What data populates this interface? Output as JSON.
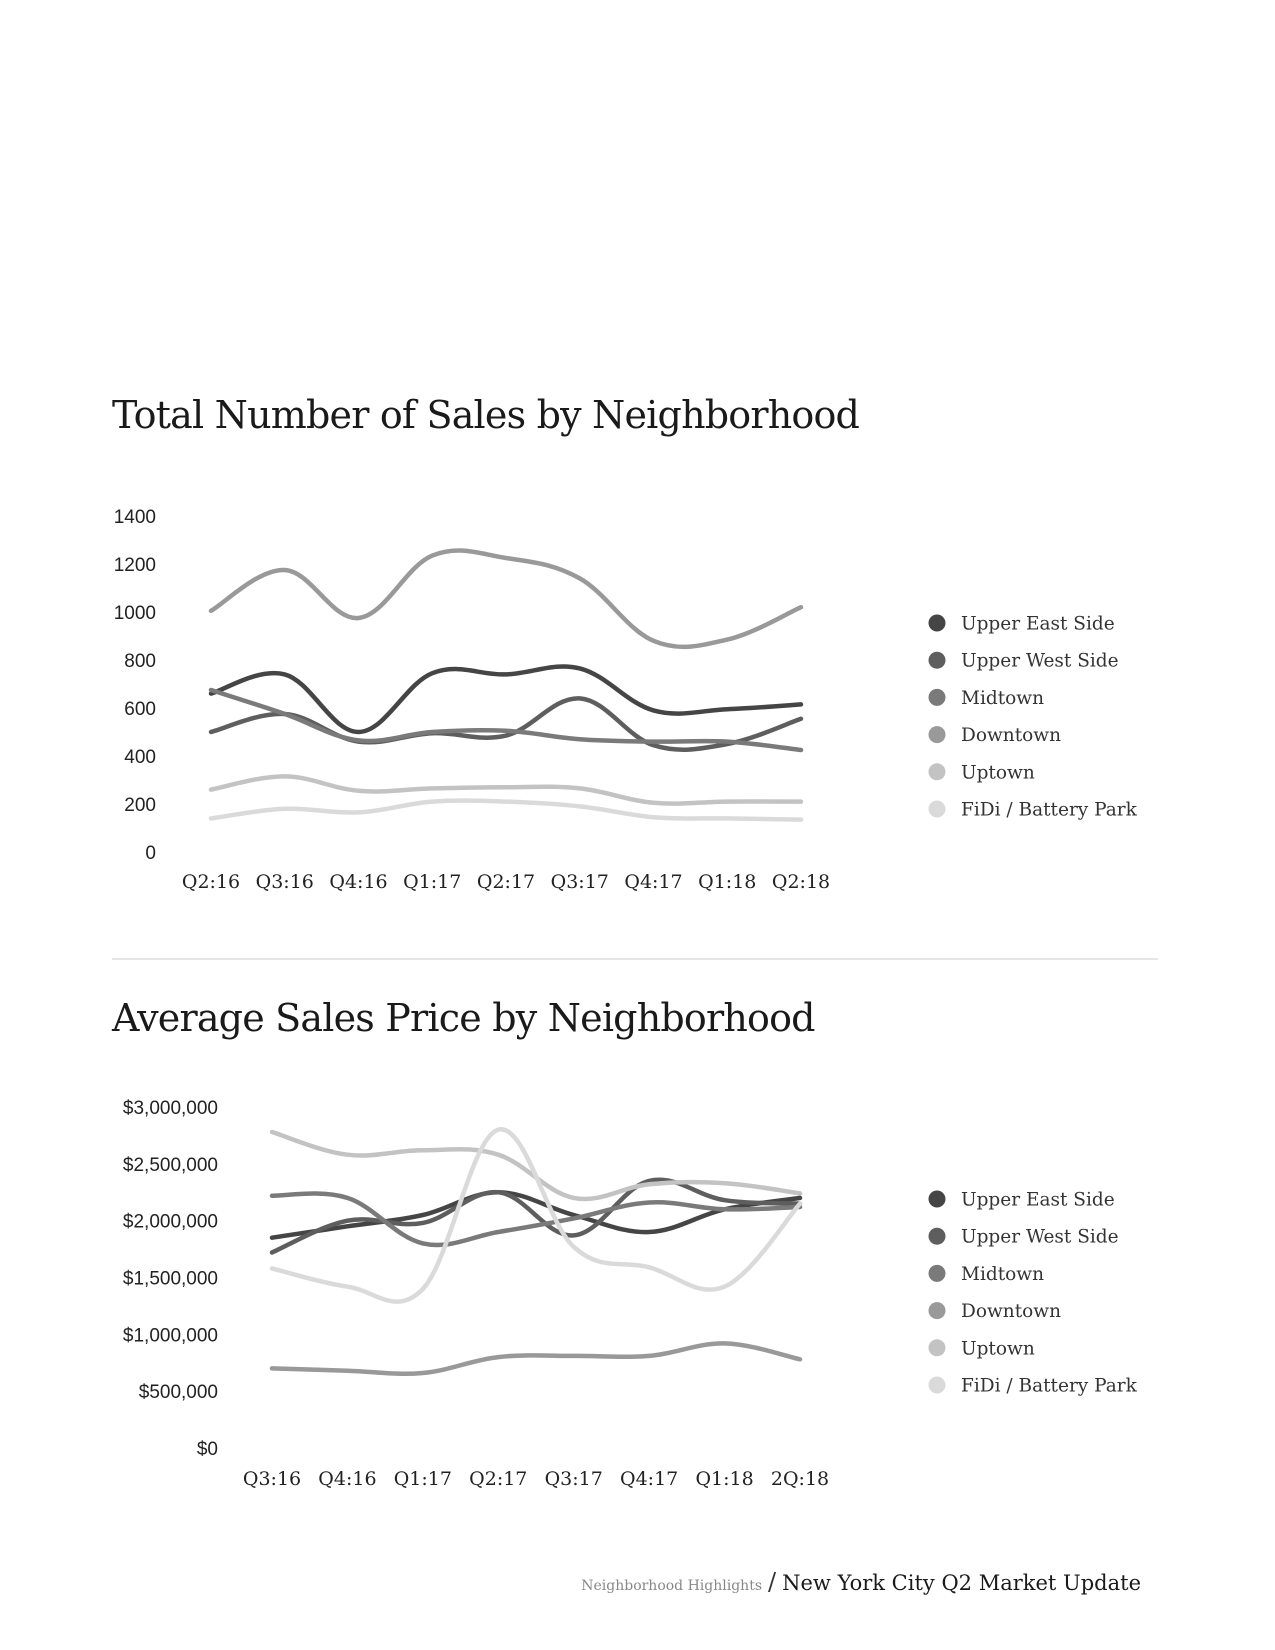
{
  "chart_data": [
    {
      "type": "line",
      "title": "Total Number of Sales by Neighborhood",
      "xlabel": "",
      "ylabel": "",
      "ylim": [
        0,
        1400
      ],
      "yticks": [
        0,
        200,
        400,
        600,
        800,
        1000,
        1200,
        1400
      ],
      "ytick_labels": [
        "0",
        "200",
        "400",
        "600",
        "800",
        "1000",
        "1200",
        "1400"
      ],
      "categories": [
        "Q2:16",
        "Q3:16",
        "Q4:16",
        "Q1:17",
        "Q2:17",
        "Q3:17",
        "Q4:17",
        "Q1:18",
        "Q2:18"
      ],
      "legend_position": "right",
      "grid": false,
      "series": [
        {
          "name": "Upper East Side",
          "color": "#454545",
          "values": [
            660,
            740,
            500,
            745,
            740,
            765,
            590,
            595,
            615
          ]
        },
        {
          "name": "Upper West Side",
          "color": "#5e5e5e",
          "values": [
            500,
            575,
            460,
            495,
            485,
            640,
            445,
            450,
            555
          ]
        },
        {
          "name": "Midtown",
          "color": "#7a7a7a",
          "values": [
            675,
            575,
            465,
            500,
            505,
            470,
            460,
            460,
            425
          ]
        },
        {
          "name": "Downtown",
          "color": "#999999",
          "values": [
            1005,
            1175,
            975,
            1235,
            1225,
            1140,
            880,
            885,
            1020
          ]
        },
        {
          "name": "Uptown",
          "color": "#c3c3c3",
          "values": [
            260,
            315,
            255,
            265,
            270,
            265,
            205,
            210,
            210
          ]
        },
        {
          "name": "FiDi / Battery Park",
          "color": "#dadada",
          "values": [
            140,
            180,
            165,
            210,
            210,
            190,
            145,
            140,
            135
          ]
        }
      ]
    },
    {
      "type": "line",
      "title": "Average Sales Price by Neighborhood",
      "xlabel": "",
      "ylabel": "",
      "ylim": [
        0,
        3000000
      ],
      "yticks": [
        0,
        500000,
        1000000,
        1500000,
        2000000,
        2500000,
        3000000
      ],
      "ytick_labels": [
        "$0",
        "$500,000",
        "$1,000,000",
        "$1,500,000",
        "$2,000,000",
        "$2,500,000",
        "$3,000,000"
      ],
      "categories": [
        "Q3:16",
        "Q4:16",
        "Q1:17",
        "Q2:17",
        "Q3:17",
        "Q4:17",
        "Q1:18",
        "2Q:18"
      ],
      "legend_position": "right",
      "grid": false,
      "series": [
        {
          "name": "Upper East Side",
          "color": "#454545",
          "values": [
            1850000,
            1950000,
            2050000,
            2250000,
            2050000,
            1900000,
            2100000,
            2200000
          ]
        },
        {
          "name": "Upper West Side",
          "color": "#5e5e5e",
          "values": [
            1720000,
            2000000,
            1980000,
            2250000,
            1870000,
            2350000,
            2180000,
            2150000
          ]
        },
        {
          "name": "Midtown",
          "color": "#7a7a7a",
          "values": [
            2220000,
            2200000,
            1800000,
            1900000,
            2020000,
            2160000,
            2100000,
            2120000
          ]
        },
        {
          "name": "Downtown",
          "color": "#999999",
          "values": [
            700000,
            680000,
            660000,
            800000,
            810000,
            810000,
            920000,
            780000
          ]
        },
        {
          "name": "Uptown",
          "color": "#c3c3c3",
          "values": [
            2780000,
            2580000,
            2620000,
            2580000,
            2200000,
            2320000,
            2330000,
            2240000
          ]
        },
        {
          "name": "FiDi / Battery Park",
          "color": "#dadada",
          "values": [
            1580000,
            1420000,
            1400000,
            2800000,
            1770000,
            1590000,
            1420000,
            2150000
          ]
        }
      ]
    }
  ],
  "footer": {
    "section": "Neighborhood Highlights",
    "separator": "/",
    "document_title": "New York City Q2 Market Update"
  }
}
